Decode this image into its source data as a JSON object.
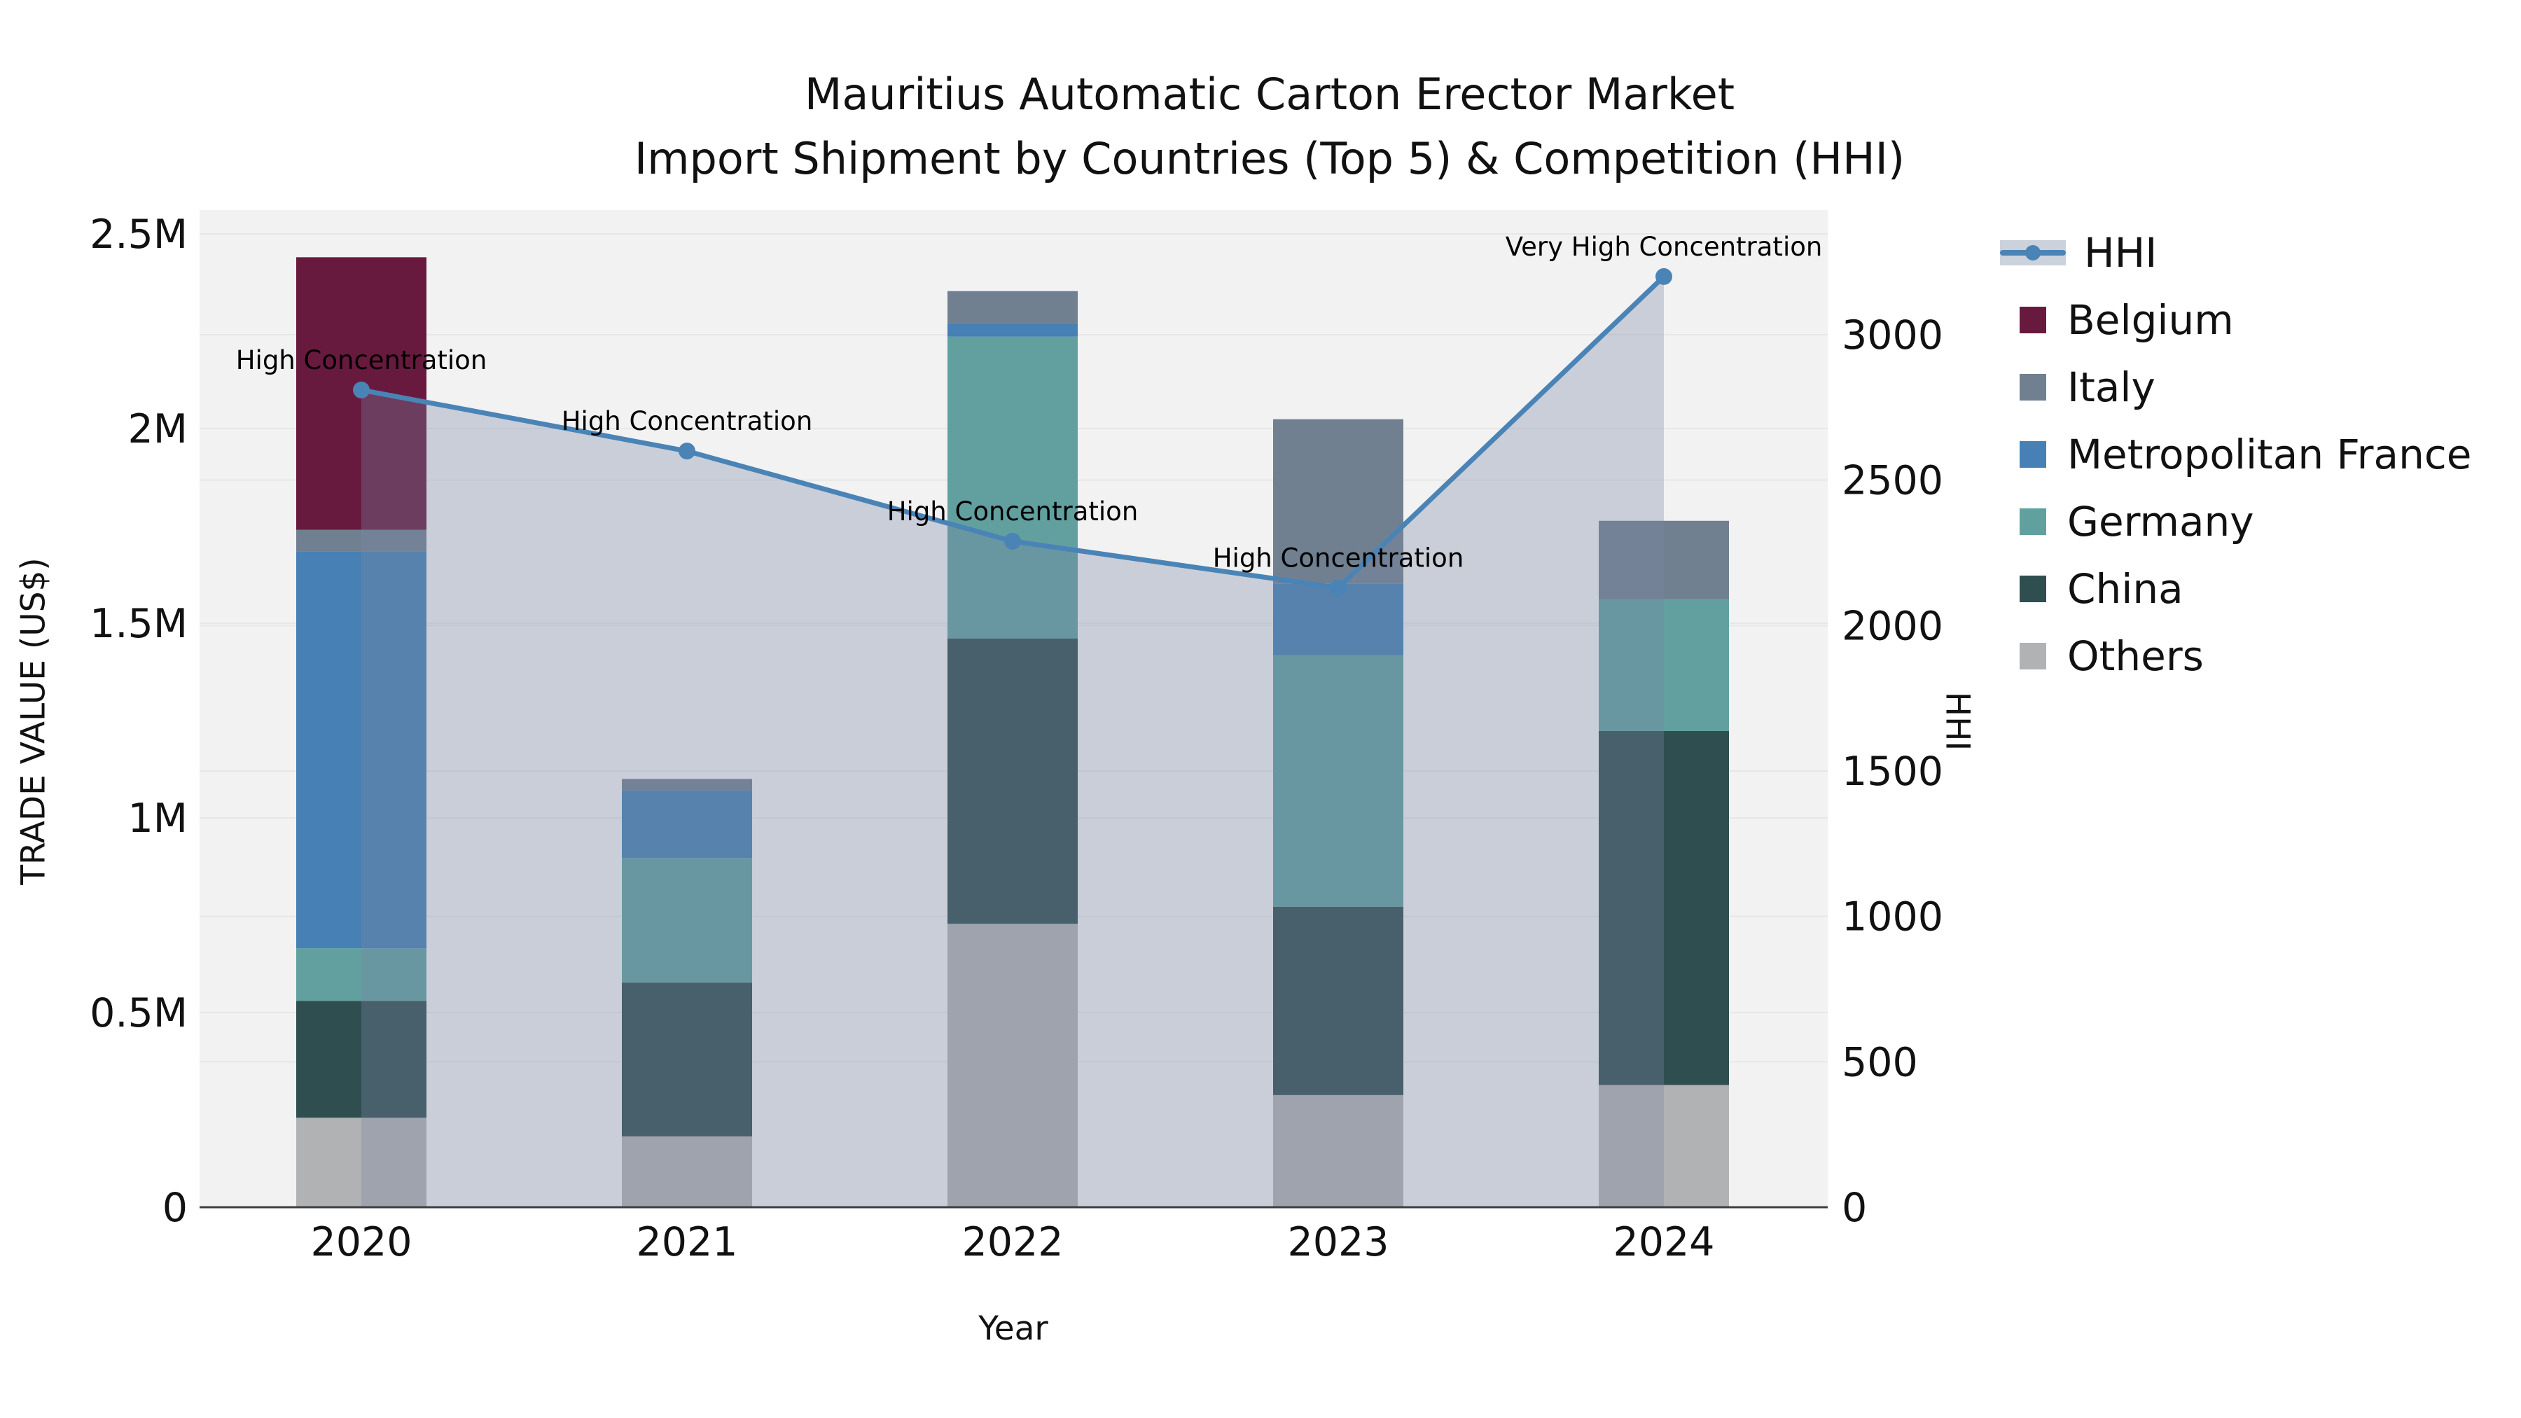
{
  "title": {
    "line1": "Mauritius Automatic Carton Erector Market",
    "line2": "Import Shipment by Countries (Top 5) & Competition (HHI)"
  },
  "axes": {
    "left": {
      "title": "TRADE VALUE (US$)",
      "ticks": [
        {
          "label": "0",
          "value": 0
        },
        {
          "label": "0.5M",
          "value": 500000
        },
        {
          "label": "1M",
          "value": 1000000
        },
        {
          "label": "1.5M",
          "value": 1500000
        },
        {
          "label": "2M",
          "value": 2000000
        },
        {
          "label": "2.5M",
          "value": 2500000
        }
      ]
    },
    "right": {
      "title": "HHI",
      "ticks": [
        {
          "label": "0",
          "value": 0
        },
        {
          "label": "500",
          "value": 500
        },
        {
          "label": "1000",
          "value": 1000
        },
        {
          "label": "1500",
          "value": 1500
        },
        {
          "label": "2000",
          "value": 2000
        },
        {
          "label": "2500",
          "value": 2500
        },
        {
          "label": "3000",
          "value": 3000
        }
      ]
    },
    "x": {
      "title": "Year",
      "categories": [
        "2020",
        "2021",
        "2022",
        "2023",
        "2024"
      ]
    }
  },
  "legend": {
    "items": [
      {
        "label": "HHI",
        "type": "line",
        "color": "#4a84b6"
      },
      {
        "label": "Belgium",
        "type": "square",
        "color": "#681a3e"
      },
      {
        "label": "Italy",
        "type": "square",
        "color": "#718090"
      },
      {
        "label": "Metropolitan France",
        "type": "square",
        "color": "#4680b4"
      },
      {
        "label": "Germany",
        "type": "square",
        "color": "#62a0a0"
      },
      {
        "label": "China",
        "type": "square",
        "color": "#2f4e50"
      },
      {
        "label": "Others",
        "type": "square",
        "color": "#b0b2b4"
      }
    ]
  },
  "annotations": [
    {
      "category": "2020",
      "text": "High Concentration"
    },
    {
      "category": "2021",
      "text": "High Concentration"
    },
    {
      "category": "2022",
      "text": "High Concentration"
    },
    {
      "category": "2023",
      "text": "High Concentration"
    },
    {
      "category": "2024",
      "text": "Very High Concentration"
    }
  ],
  "colors": {
    "plot_background": "#f2f2f2",
    "gridline": "#e7e7e7",
    "axis_line": "#3f3f3f",
    "hhi_line": "#4a84b6",
    "hhi_area_fill": "rgba(120,135,165,0.33)",
    "text": "#111111"
  },
  "chart_data": {
    "type": "combo",
    "subtype": [
      "stacked-bar",
      "line-with-area"
    ],
    "title": "Mauritius Automatic Carton Erector Market — Import Shipment by Countries (Top 5) & Competition (HHI)",
    "xlabel": "Year",
    "ylabel_left": "TRADE VALUE (US$)",
    "ylabel_right": "HHI",
    "categories": [
      "2020",
      "2021",
      "2022",
      "2023",
      "2024"
    ],
    "bar_series_bottom_to_top": [
      {
        "name": "Others",
        "color": "#b0b2b4",
        "values": [
          230000,
          182000,
          728000,
          288000,
          314000
        ]
      },
      {
        "name": "China",
        "color": "#2f4e50",
        "values": [
          300000,
          395000,
          733000,
          484000,
          909000
        ]
      },
      {
        "name": "Germany",
        "color": "#62a0a0",
        "values": [
          135000,
          320000,
          775000,
          645000,
          339000
        ]
      },
      {
        "name": "Metropolitan France",
        "color": "#4680b4",
        "values": [
          1020000,
          173000,
          34000,
          185000,
          0
        ]
      },
      {
        "name": "Italy",
        "color": "#718090",
        "values": [
          55000,
          30000,
          83000,
          422000,
          201000
        ]
      },
      {
        "name": "Belgium",
        "color": "#681a3e",
        "values": [
          700000,
          0,
          0,
          0,
          0
        ]
      }
    ],
    "bar_totals_approx": [
      2440000,
      1100000,
      2353000,
      2024000,
      1763000
    ],
    "line_series": {
      "name": "HHI",
      "axis": "right",
      "color": "#4a84b6",
      "values": [
        2810,
        2600,
        2290,
        2130,
        3200
      ],
      "labels": [
        "High Concentration",
        "High Concentration",
        "High Concentration",
        "High Concentration",
        "Very High Concentration"
      ]
    },
    "ylim_left": [
      0,
      2570000
    ],
    "ylim_right": [
      0,
      3340
    ],
    "grid": true,
    "legend_position": "right-outside-top"
  }
}
